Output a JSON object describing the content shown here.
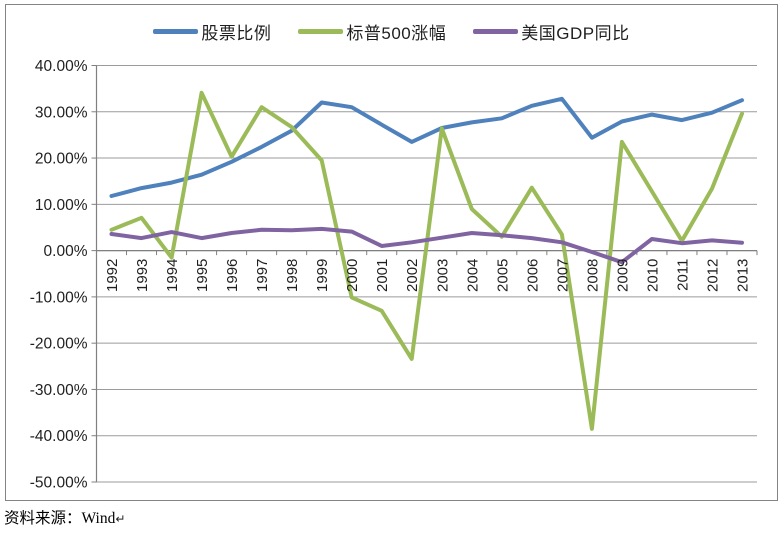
{
  "page": {
    "background": "#ffffff"
  },
  "frame": {
    "border_color": "#848484"
  },
  "legend": {
    "items": [
      {
        "key": "stock-ratio",
        "label": "股票比例",
        "color": "#4F81BD"
      },
      {
        "key": "sp500-change",
        "label": "标普500涨幅",
        "color": "#9BBB59"
      },
      {
        "key": "us-gdp-yoy",
        "label": "美国GDP同比",
        "color": "#8064A2"
      }
    ]
  },
  "caption": {
    "text": "资料来源：Wind",
    "return_mark": "↵"
  },
  "chart_data": {
    "type": "line",
    "title": "",
    "xlabel": "",
    "ylabel": "",
    "categories": [
      "1992",
      "1993",
      "1994",
      "1995",
      "1996",
      "1997",
      "1998",
      "1999",
      "2000",
      "2001",
      "2002",
      "2003",
      "2004",
      "2005",
      "2006",
      "2007",
      "2008",
      "2009",
      "2010",
      "2011",
      "2012",
      "2013"
    ],
    "series": [
      {
        "name": "股票比例",
        "key": "stock-ratio",
        "color": "#4F81BD",
        "values": [
          11.8,
          13.5,
          14.7,
          16.4,
          19.2,
          22.4,
          25.9,
          32.0,
          31.0,
          27.2,
          23.5,
          26.5,
          27.7,
          28.6,
          31.3,
          32.8,
          24.4,
          27.9,
          29.4,
          28.2,
          29.8,
          32.5
        ]
      },
      {
        "name": "标普500涨幅",
        "key": "sp500-change",
        "color": "#9BBB59",
        "values": [
          4.5,
          7.1,
          -1.5,
          34.1,
          20.3,
          31.0,
          26.7,
          19.5,
          -10.1,
          -13.0,
          -23.4,
          26.4,
          9.0,
          3.0,
          13.6,
          3.5,
          -38.5,
          23.5,
          12.8,
          2.1,
          13.4,
          29.6
        ]
      },
      {
        "name": "美国GDP同比",
        "key": "us-gdp-yoy",
        "color": "#8064A2",
        "values": [
          3.6,
          2.7,
          4.0,
          2.7,
          3.8,
          4.5,
          4.4,
          4.7,
          4.1,
          1.0,
          1.8,
          2.8,
          3.8,
          3.3,
          2.7,
          1.8,
          -0.3,
          -2.5,
          2.5,
          1.6,
          2.2,
          1.7
        ]
      }
    ],
    "ylim": [
      -50,
      40
    ],
    "ytick_step": 10,
    "ytick_labels": [
      "40.00%",
      "30.00%",
      "20.00%",
      "10.00%",
      "0.00%",
      "-10.00%",
      "-20.00%",
      "-30.00%",
      "-40.00%",
      "-50.00%"
    ],
    "grid": true,
    "legend_position": "top-center",
    "x_label_rotation": -90,
    "styles": {
      "grid_color": "#9b9b9b",
      "axis_color": "#808080",
      "tick_color": "#808080",
      "label_color": "#1f1f1f",
      "line_width": 4
    }
  }
}
